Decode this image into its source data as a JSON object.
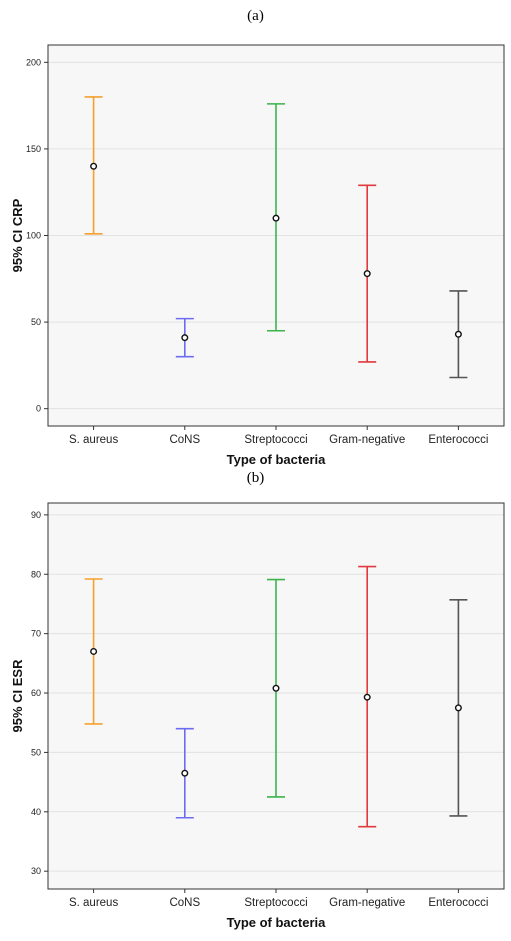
{
  "panels": [
    {
      "label": "(a)",
      "chart_data": {
        "type": "errorbar",
        "title": "",
        "xlabel": "Type of bacteria",
        "ylabel": "95% CI CRP",
        "ylim": [
          -10,
          210
        ],
        "yticks": [
          0,
          50,
          100,
          150,
          200
        ],
        "grid": true,
        "categories": [
          "S. aureus",
          "CoNS",
          "Streptococci",
          "Gram-negative",
          "Enterococci"
        ],
        "mean": [
          140,
          41,
          110,
          78,
          43
        ],
        "lower": [
          101,
          30,
          45,
          27,
          18
        ],
        "upper": [
          180,
          52,
          176,
          129,
          68
        ],
        "colors": [
          "#f5a02d",
          "#6c6cf0",
          "#3cb44b",
          "#e0393e",
          "#555555"
        ]
      }
    },
    {
      "label": "(b)",
      "chart_data": {
        "type": "errorbar",
        "title": "",
        "xlabel": "Type of bacteria",
        "ylabel": "95% CI ESR",
        "ylim": [
          27,
          92
        ],
        "yticks": [
          30,
          40,
          50,
          60,
          70,
          80,
          90
        ],
        "grid": true,
        "categories": [
          "S. aureus",
          "CoNS",
          "Streptococci",
          "Gram-negative",
          "Enterococci"
        ],
        "mean": [
          67,
          46.5,
          60.8,
          59.3,
          57.5
        ],
        "lower": [
          54.8,
          39,
          42.5,
          37.5,
          39.3
        ],
        "upper": [
          79.2,
          54,
          79.1,
          81.3,
          75.7
        ],
        "colors": [
          "#f5a02d",
          "#6c6cf0",
          "#3cb44b",
          "#e0393e",
          "#555555"
        ]
      }
    }
  ]
}
